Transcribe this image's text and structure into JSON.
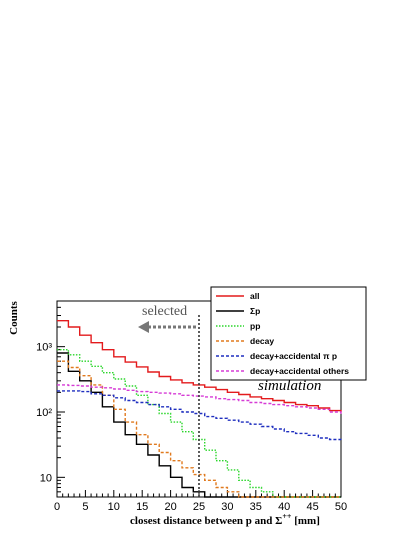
{
  "chart_data": {
    "type": "line",
    "xlabel_prefix": "closest distance between p and ",
    "xlabel_symbol": "Σ",
    "xlabel_sup": "++",
    "xlabel_suffix": " [mm]",
    "ylabel": "Counts",
    "xlim": [
      0,
      50
    ],
    "ylim": [
      5,
      5000
    ],
    "yscale": "log",
    "x_ticks": [
      0,
      5,
      10,
      15,
      20,
      25,
      30,
      35,
      40,
      45,
      50
    ],
    "y_ticks": [
      {
        "value": 10,
        "label": "10"
      },
      {
        "value": 100,
        "label": "10²"
      },
      {
        "value": 1000,
        "label": "10³"
      }
    ],
    "legend_placement": "top-right",
    "annotations": {
      "selected": "selected",
      "simulation": "simulation",
      "cut_x": 25
    },
    "x": [
      0,
      2,
      4,
      6,
      8,
      10,
      12,
      14,
      16,
      18,
      20,
      22,
      24,
      26,
      28,
      30,
      32,
      34,
      36,
      38,
      40,
      42,
      44,
      46,
      48,
      50
    ],
    "series": [
      {
        "name": "all",
        "color": "#e31a1c",
        "dash": "solid",
        "values": [
          2500,
          2000,
          1500,
          1150,
          900,
          700,
          580,
          490,
          410,
          350,
          310,
          280,
          260,
          240,
          220,
          200,
          185,
          170,
          160,
          150,
          140,
          130,
          125,
          115,
          105,
          100
        ]
      },
      {
        "name": "Σp",
        "color": "#000000",
        "dash": "solid",
        "values": [
          800,
          420,
          300,
          200,
          120,
          70,
          45,
          32,
          22,
          15,
          10,
          7,
          6,
          5,
          5,
          5,
          5,
          5,
          5,
          5,
          5,
          5,
          5,
          5,
          5,
          5
        ]
      },
      {
        "name": "pp",
        "color": "#2bd62b",
        "dash": "dotted",
        "values": [
          900,
          750,
          600,
          500,
          400,
          320,
          250,
          180,
          130,
          95,
          70,
          50,
          38,
          26,
          18,
          13,
          9,
          7,
          6,
          5,
          5,
          5,
          5,
          5,
          5,
          5
        ]
      },
      {
        "name": "decay",
        "color": "#e07a1f",
        "dash": "dashed",
        "values": [
          600,
          480,
          360,
          260,
          180,
          110,
          70,
          45,
          32,
          24,
          18,
          14,
          11,
          9,
          7,
          6,
          5,
          5,
          5,
          5,
          5,
          5,
          5,
          5,
          5,
          5
        ]
      },
      {
        "name": "decay+accidental π p",
        "color": "#1f2fbf",
        "dash": "dashed",
        "values": [
          210,
          210,
          205,
          190,
          180,
          165,
          150,
          140,
          130,
          120,
          110,
          100,
          95,
          85,
          80,
          75,
          70,
          65,
          60,
          55,
          50,
          47,
          44,
          40,
          38,
          36
        ]
      },
      {
        "name": "decay+accidental others",
        "color": "#d63bd6",
        "dash": "dashed",
        "values": [
          260,
          255,
          250,
          240,
          235,
          225,
          215,
          205,
          200,
          195,
          190,
          180,
          175,
          170,
          160,
          155,
          150,
          140,
          135,
          130,
          125,
          120,
          115,
          110,
          100,
          90
        ]
      }
    ]
  }
}
